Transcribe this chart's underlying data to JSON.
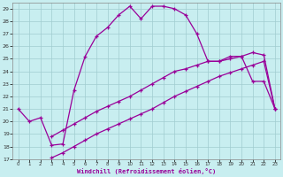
{
  "xlabel": "Windchill (Refroidissement éolien,°C)",
  "xlim": [
    -0.5,
    23.5
  ],
  "ylim": [
    17,
    29.5
  ],
  "xticks": [
    0,
    1,
    2,
    3,
    4,
    5,
    6,
    7,
    8,
    9,
    10,
    11,
    12,
    13,
    14,
    15,
    16,
    17,
    18,
    19,
    20,
    21,
    22,
    23
  ],
  "yticks": [
    17,
    18,
    19,
    20,
    21,
    22,
    23,
    24,
    25,
    26,
    27,
    28,
    29
  ],
  "bg_color": "#c8eef0",
  "line_color": "#990099",
  "grid_color": "#a0ccd0",
  "curve1_x": [
    0,
    1,
    2,
    3,
    4,
    5,
    6,
    7,
    8,
    9,
    10,
    11,
    12,
    13,
    14,
    15,
    16,
    17,
    18,
    19,
    20,
    21,
    22,
    23
  ],
  "curve1_y": [
    21.0,
    20.0,
    20.3,
    18.1,
    18.2,
    22.5,
    25.2,
    26.8,
    27.5,
    28.5,
    29.2,
    28.2,
    29.2,
    29.2,
    29.0,
    28.5,
    27.0,
    24.8,
    24.8,
    25.2,
    25.2,
    23.2,
    23.2,
    21.0
  ],
  "curve2_x": [
    3,
    4,
    5,
    6,
    7,
    8,
    9,
    10,
    11,
    12,
    13,
    14,
    15,
    16,
    17,
    18,
    19,
    20,
    21,
    22,
    23
  ],
  "curve2_y": [
    18.8,
    19.3,
    19.8,
    20.3,
    20.8,
    21.2,
    21.6,
    22.0,
    22.5,
    23.0,
    23.5,
    24.0,
    24.2,
    24.5,
    24.8,
    24.8,
    25.0,
    25.2,
    25.5,
    25.3,
    21.0
  ],
  "curve3_x": [
    3,
    4,
    5,
    6,
    7,
    8,
    9,
    10,
    11,
    12,
    13,
    14,
    15,
    16,
    17,
    18,
    19,
    20,
    21,
    22,
    23
  ],
  "curve3_y": [
    17.1,
    17.5,
    18.0,
    18.5,
    19.0,
    19.4,
    19.8,
    20.2,
    20.6,
    21.0,
    21.5,
    22.0,
    22.4,
    22.8,
    23.2,
    23.6,
    23.9,
    24.2,
    24.5,
    24.8,
    21.0
  ]
}
